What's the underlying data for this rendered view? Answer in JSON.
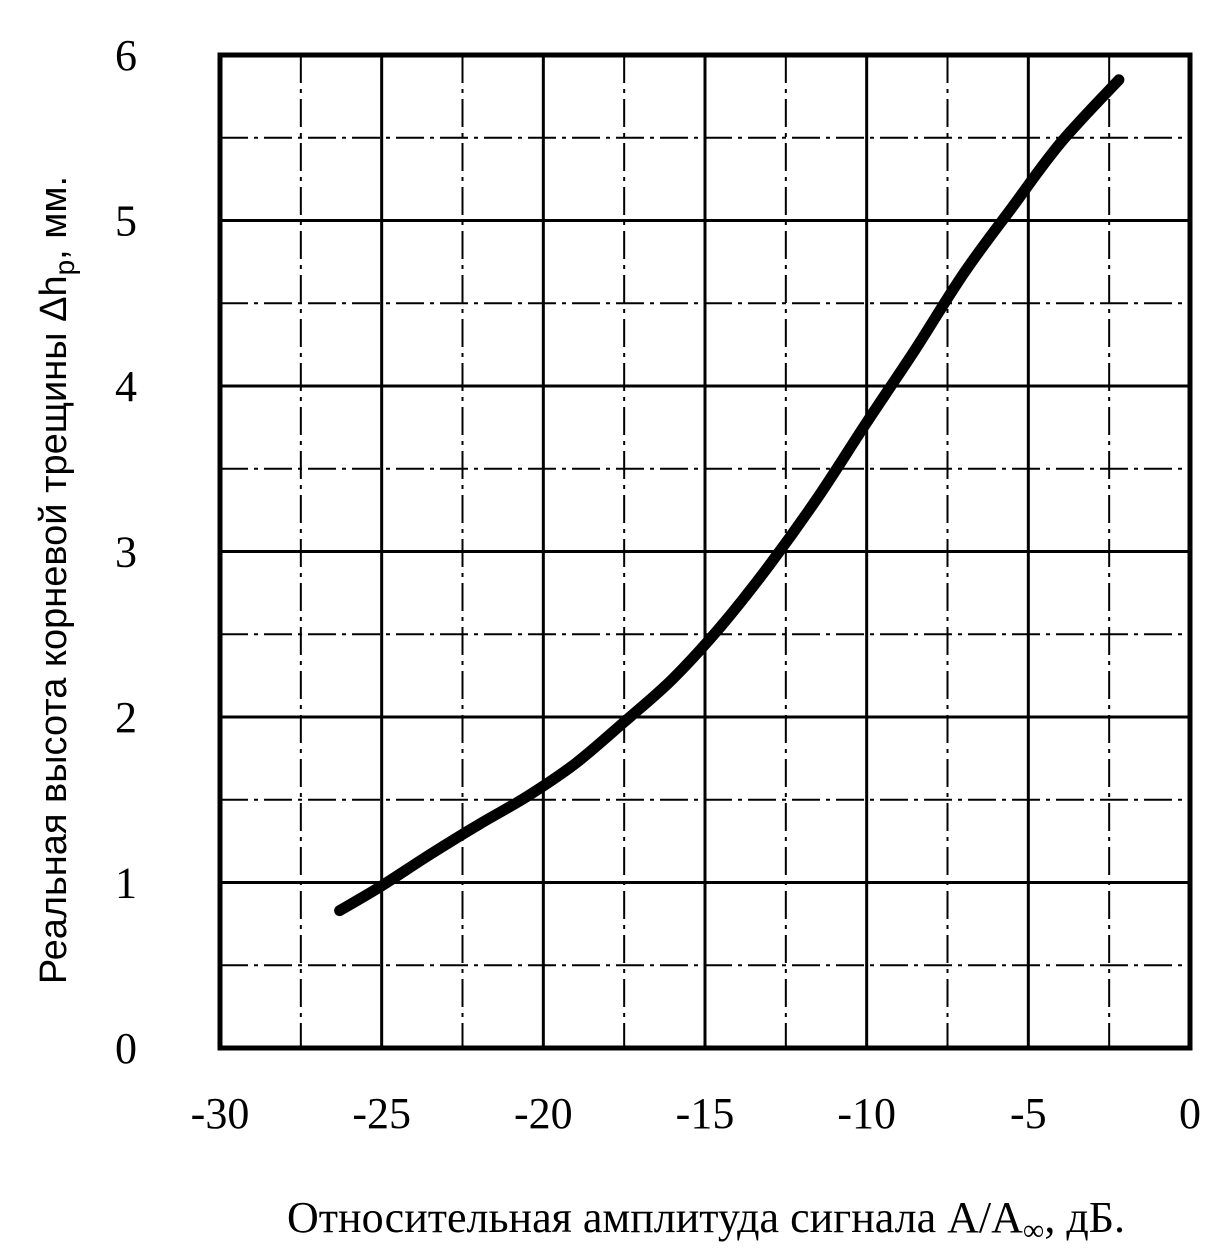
{
  "chart_data": {
    "type": "line",
    "xlabel": "Относительная амплитуда сигнала A/A",
    "xlabel_sub": "∞",
    "xlabel_suffix": ", дБ.",
    "ylabel": "Реальная высота корневой трещины   Δh",
    "ylabel_sub": "p",
    "ylabel_suffix": ", мм.",
    "xlim": [
      -30,
      0
    ],
    "ylim": [
      0,
      6
    ],
    "x_ticks": [
      -30,
      -25,
      -20,
      -15,
      -10,
      -5,
      0
    ],
    "x_tick_labels": [
      "-30",
      "-25",
      "-20",
      "-15",
      "-10",
      "-5",
      "0"
    ],
    "y_ticks": [
      0,
      1,
      2,
      3,
      4,
      5,
      6
    ],
    "y_tick_labels": [
      "0",
      "1",
      "2",
      "3",
      "4",
      "5",
      "6"
    ],
    "grid": true,
    "line_color": "#000000",
    "series": [
      {
        "x": [
          -26.3,
          -25.0,
          -23.5,
          -22.0,
          -20.5,
          -19.0,
          -17.5,
          -16.0,
          -14.5,
          -13.0,
          -11.5,
          -10.0,
          -8.5,
          -7.0,
          -5.5,
          -4.0,
          -2.2
        ],
        "y": [
          0.83,
          0.98,
          1.17,
          1.35,
          1.52,
          1.72,
          1.97,
          2.23,
          2.55,
          2.92,
          3.33,
          3.78,
          4.22,
          4.68,
          5.08,
          5.47,
          5.85
        ]
      }
    ]
  }
}
